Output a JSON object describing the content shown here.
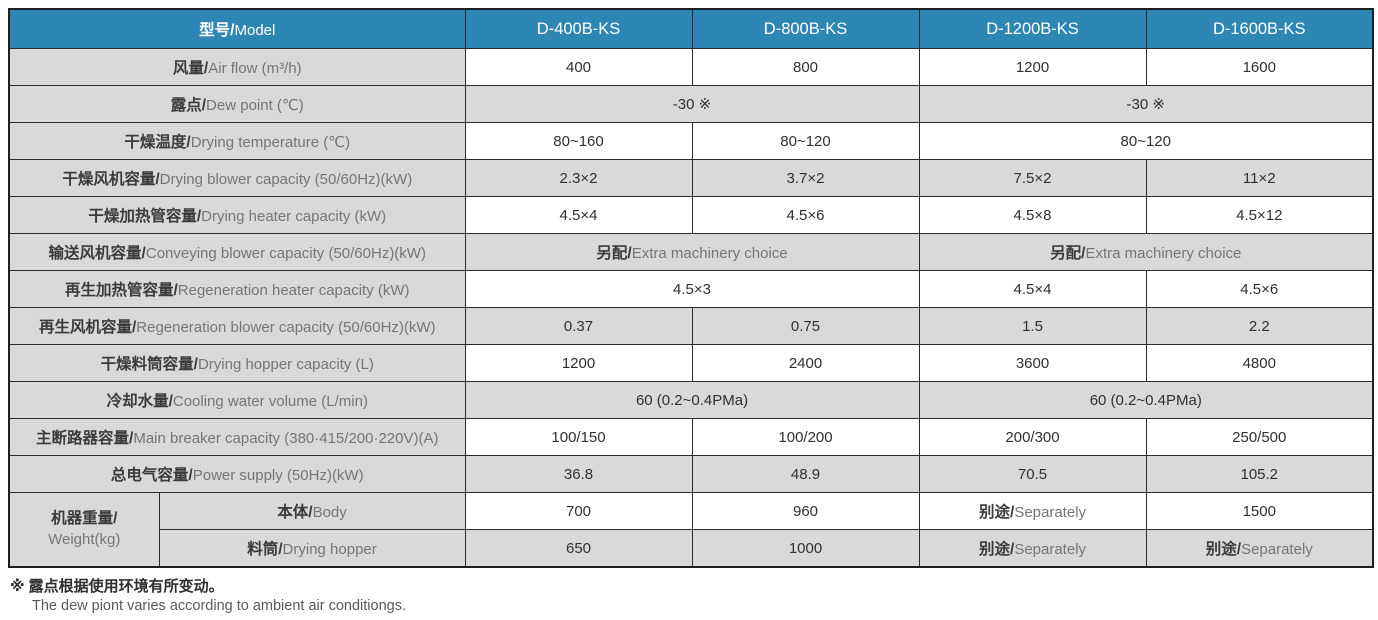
{
  "table": {
    "header": {
      "label": {
        "zh": "型号/",
        "en": "Model"
      },
      "models": [
        "D-400B-KS",
        "D-800B-KS",
        "D-1200B-KS",
        "D-1600B-KS"
      ]
    },
    "weight_label": {
      "zh": "机器重量/",
      "en": "Weight(kg)"
    },
    "rows": [
      {
        "id": "air-flow",
        "label": {
          "zh": "风量/",
          "en": "Air flow (m³/h)"
        },
        "shade": "light",
        "cells": [
          {
            "t": "400"
          },
          {
            "t": "800"
          },
          {
            "t": "1200"
          },
          {
            "t": "1600"
          }
        ]
      },
      {
        "id": "dew-point",
        "label": {
          "zh": "露点/",
          "en": "Dew point (℃)"
        },
        "shade": "dark",
        "cells": [
          {
            "t": "-30 ※",
            "span": 2
          },
          {
            "t": "-30 ※",
            "span": 2
          }
        ]
      },
      {
        "id": "drying-temperature",
        "label": {
          "zh": "干燥温度/",
          "en": "Drying temperature (℃)"
        },
        "shade": "light",
        "cells": [
          {
            "t": "80~160"
          },
          {
            "t": "80~120"
          },
          {
            "t": "80~120",
            "span": 2
          }
        ]
      },
      {
        "id": "drying-blower-capacity",
        "label": {
          "zh": "干燥风机容量/",
          "en": "Drying blower capacity (50/60Hz)(kW)"
        },
        "shade": "dark",
        "cells": [
          {
            "t": "2.3×2"
          },
          {
            "t": "3.7×2"
          },
          {
            "t": "7.5×2"
          },
          {
            "t": "11×2"
          }
        ]
      },
      {
        "id": "drying-heater-capacity",
        "label": {
          "zh": "干燥加热管容量/",
          "en": "Drying heater capacity (kW)"
        },
        "shade": "light",
        "cells": [
          {
            "t": "4.5×4"
          },
          {
            "t": "4.5×6"
          },
          {
            "t": "4.5×8"
          },
          {
            "t": "4.5×12"
          }
        ]
      },
      {
        "id": "conveying-blower-capacity",
        "label": {
          "zh": "输送风机容量/",
          "en": "Conveying blower capacity (50/60Hz)(kW)"
        },
        "shade": "dark",
        "cells": [
          {
            "zh": "另配/",
            "en": "Extra machinery choice",
            "span": 2
          },
          {
            "zh": "另配/",
            "en": "Extra machinery choice",
            "span": 2
          }
        ]
      },
      {
        "id": "regeneration-heater-capacity",
        "label": {
          "zh": "再生加热管容量/",
          "en": "Regeneration heater capacity (kW)"
        },
        "shade": "light",
        "cells": [
          {
            "t": "4.5×3",
            "span": 2
          },
          {
            "t": "4.5×4"
          },
          {
            "t": "4.5×6"
          }
        ]
      },
      {
        "id": "regeneration-blower-capacity",
        "label": {
          "zh": "再生风机容量/",
          "en": "Regeneration blower capacity (50/60Hz)(kW)"
        },
        "shade": "dark",
        "cells": [
          {
            "t": "0.37"
          },
          {
            "t": "0.75"
          },
          {
            "t": "1.5"
          },
          {
            "t": "2.2"
          }
        ]
      },
      {
        "id": "drying-hopper-capacity",
        "label": {
          "zh": "干燥料筒容量/",
          "en": "Drying hopper capacity (L)"
        },
        "shade": "light",
        "cells": [
          {
            "t": "1200"
          },
          {
            "t": "2400"
          },
          {
            "t": "3600"
          },
          {
            "t": "4800"
          }
        ]
      },
      {
        "id": "cooling-water-volume",
        "label": {
          "zh": "冷却水量/",
          "en": "Cooling water volume (L/min)"
        },
        "shade": "dark",
        "cells": [
          {
            "t": "60 (0.2~0.4PMa)",
            "span": 2
          },
          {
            "t": "60 (0.2~0.4PMa)",
            "span": 2
          }
        ]
      },
      {
        "id": "main-breaker-capacity",
        "label": {
          "zh": "主断路器容量/",
          "en": "Main breaker capacity (380·415/200·220V)(A)"
        },
        "shade": "light",
        "cells": [
          {
            "t": "100/150"
          },
          {
            "t": "100/200"
          },
          {
            "t": "200/300"
          },
          {
            "t": "250/500"
          }
        ]
      },
      {
        "id": "power-supply",
        "label": {
          "zh": "总电气容量/",
          "en": "Power supply (50Hz)(kW)"
        },
        "shade": "dark",
        "cells": [
          {
            "t": "36.8"
          },
          {
            "t": "48.9"
          },
          {
            "t": "70.5"
          },
          {
            "t": "105.2"
          }
        ]
      },
      {
        "id": "weight-body",
        "group_start": true,
        "sublabel": {
          "zh": "本体/",
          "en": "Body"
        },
        "shade": "light",
        "cells": [
          {
            "t": "700"
          },
          {
            "t": "960"
          },
          {
            "zh": "别途/",
            "en": "Separately"
          },
          {
            "t": "1500"
          }
        ]
      },
      {
        "id": "weight-drying-hopper",
        "sublabel": {
          "zh": "料筒/",
          "en": "Drying hopper"
        },
        "shade": "dark",
        "cells": [
          {
            "t": "650"
          },
          {
            "t": "1000"
          },
          {
            "zh": "别途/",
            "en": "Separately"
          },
          {
            "zh": "别途/",
            "en": "Separately"
          }
        ]
      }
    ]
  },
  "footnote": {
    "marker": "※",
    "zh": "露点根据使用环境有所变动。",
    "en": "The dew piont varies according to ambient air conditiongs."
  }
}
